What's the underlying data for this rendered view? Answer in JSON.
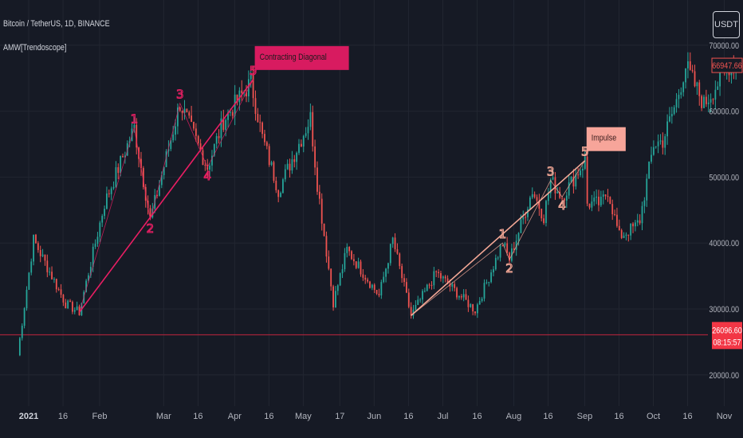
{
  "header": {
    "symbol_title": "Bitcoin / TetherUS, 1D, BINANCE",
    "indicator_name": "AMW[Trendoscope]",
    "currency_button": "USDT"
  },
  "colors": {
    "background": "#161a25",
    "grid": "#222631",
    "up": "#26a69a",
    "down": "#ef5350",
    "pattern1": "#e91e63",
    "pattern1_label_bg": "#d81b60",
    "pattern2": "#f4a896",
    "pattern2_label_bg": "#f7a59a",
    "hline": "#c2253e"
  },
  "chart_data": {
    "type": "candlestick",
    "x_tick_labels": [
      "2021",
      "16",
      "Feb",
      "Mar",
      "16",
      "Apr",
      "16",
      "May",
      "17",
      "Jun",
      "16",
      "Jul",
      "16",
      "Aug",
      "16",
      "Sep",
      "16",
      "Oct",
      "16",
      "Nov"
    ],
    "y_tick_labels": [
      "70000.00",
      "60000.00",
      "50000.00",
      "40000.00",
      "30000.00",
      "20000.00"
    ],
    "y_ticks": [
      70000,
      60000,
      50000,
      40000,
      30000,
      20000
    ],
    "ylim": [
      18000,
      75000
    ],
    "series_path": [
      [
        "2021-01-01",
        23000
      ],
      [
        "2021-01-08",
        40500
      ],
      [
        "2021-01-22",
        30800
      ],
      [
        "2021-01-28",
        29500
      ],
      [
        "2021-02-08",
        46000
      ],
      [
        "2021-02-21",
        57500
      ],
      [
        "2021-02-28",
        43500
      ],
      [
        "2021-03-13",
        61200
      ],
      [
        "2021-03-25",
        51500
      ],
      [
        "2021-04-01",
        58600
      ],
      [
        "2021-04-13",
        64400
      ],
      [
        "2021-04-18",
        56000
      ],
      [
        "2021-04-25",
        48000
      ],
      [
        "2021-05-09",
        59000
      ],
      [
        "2021-05-12",
        49000
      ],
      [
        "2021-05-19",
        31000
      ],
      [
        "2021-05-25",
        39000
      ],
      [
        "2021-06-08",
        32000
      ],
      [
        "2021-06-14",
        40500
      ],
      [
        "2021-06-22",
        29000
      ],
      [
        "2021-07-03",
        35500
      ],
      [
        "2021-07-20",
        29800
      ],
      [
        "2021-08-01",
        40000
      ],
      [
        "2021-08-04",
        37500
      ],
      [
        "2021-08-14",
        48000
      ],
      [
        "2021-08-19",
        44000
      ],
      [
        "2021-08-22",
        49500
      ],
      [
        "2021-08-27",
        47000
      ],
      [
        "2021-09-06",
        52500
      ],
      [
        "2021-09-07",
        46000
      ],
      [
        "2021-09-13",
        46000
      ],
      [
        "2021-09-16",
        48000
      ],
      [
        "2021-09-21",
        41000
      ],
      [
        "2021-09-28",
        42500
      ],
      [
        "2021-09-30",
        43500
      ],
      [
        "2021-10-06",
        55000
      ],
      [
        "2021-10-10",
        55500
      ],
      [
        "2021-10-16",
        61500
      ],
      [
        "2021-10-20",
        66900
      ],
      [
        "2021-10-28",
        61000
      ],
      [
        "2021-11-09",
        67500
      ],
      [
        "2021-11-11",
        66947.66
      ]
    ],
    "patterns": [
      {
        "label": "Contracting Diagonal",
        "waves": [
          {
            "date": "2021-01-28",
            "price": 29500,
            "label": ""
          },
          {
            "date": "2021-02-21",
            "price": 57500,
            "label": "1"
          },
          {
            "date": "2021-02-28",
            "price": 43500,
            "label": "2"
          },
          {
            "date": "2021-03-13",
            "price": 61200,
            "label": "3"
          },
          {
            "date": "2021-03-25",
            "price": 51500,
            "label": "4"
          },
          {
            "date": "2021-04-14",
            "price": 64800,
            "label": "5"
          }
        ]
      },
      {
        "label": "Impulse",
        "waves": [
          {
            "date": "2021-06-22",
            "price": 29000,
            "label": ""
          },
          {
            "date": "2021-08-01",
            "price": 40000,
            "label": "1"
          },
          {
            "date": "2021-08-04",
            "price": 37500,
            "label": "2"
          },
          {
            "date": "2021-08-22",
            "price": 49500,
            "label": "3"
          },
          {
            "date": "2021-08-27",
            "price": 47000,
            "label": "4"
          },
          {
            "date": "2021-09-06",
            "price": 52500,
            "label": "5"
          }
        ]
      }
    ],
    "horizontal_line": 26096.6,
    "price_labels": {
      "last_price": "66947.66",
      "line_price": "26096.60",
      "countdown": "08:15:57"
    }
  }
}
